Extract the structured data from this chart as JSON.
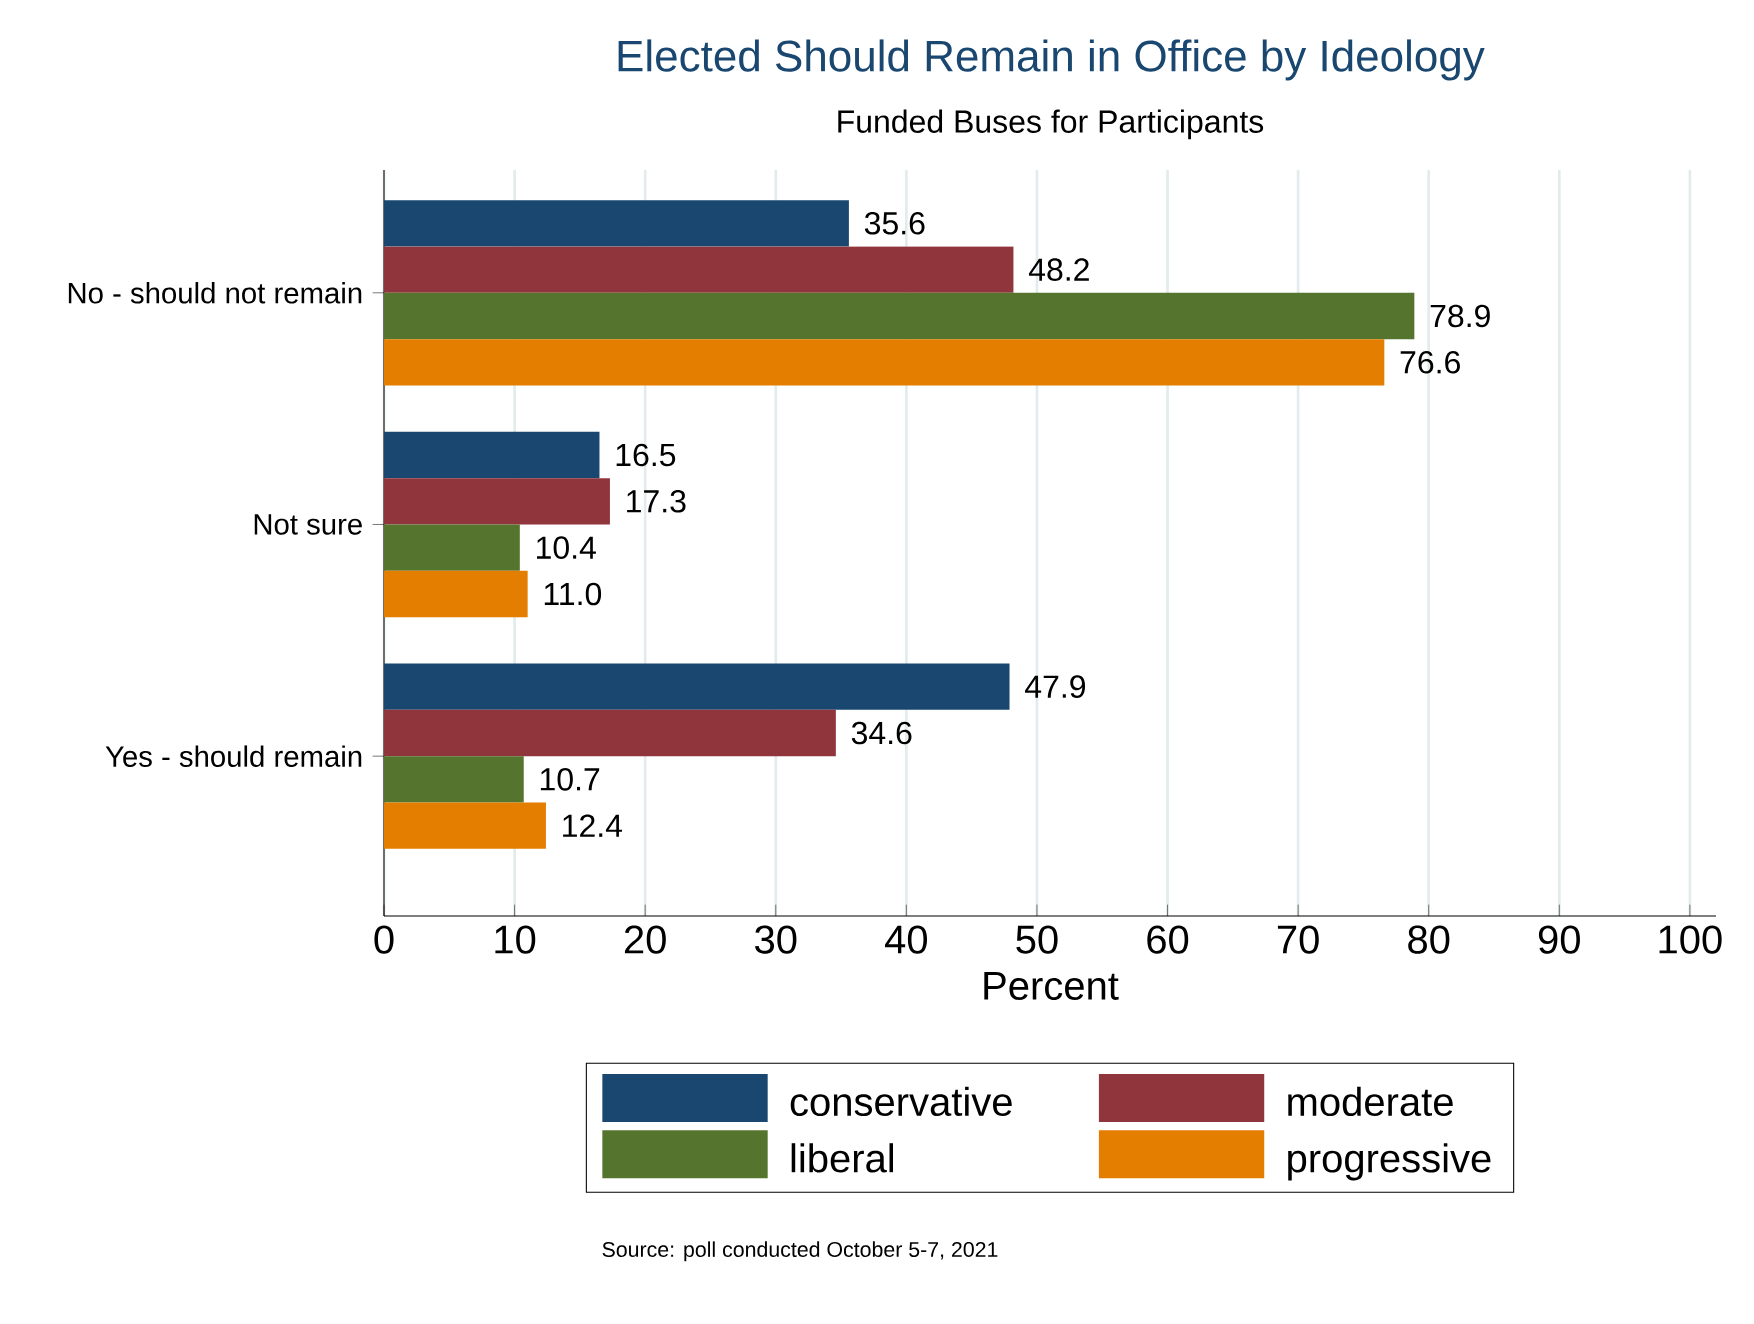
{
  "chart_data": {
    "type": "bar",
    "orientation": "horizontal",
    "title": "Elected Should Remain in Office by Ideology",
    "subtitle": "Funded Buses for Participants",
    "xlabel": "Percent",
    "categories": [
      "No - should not remain",
      "Not sure",
      "Yes - should remain"
    ],
    "series": [
      {
        "name": "conservative",
        "color": "#1a476f",
        "values": [
          35.6,
          16.5,
          47.9
        ],
        "value_labels": [
          "35.6",
          "16.5",
          "47.9"
        ]
      },
      {
        "name": "moderate",
        "color": "#90353b",
        "values": [
          48.2,
          17.3,
          34.6
        ],
        "value_labels": [
          "48.2",
          "17.3",
          "34.6"
        ]
      },
      {
        "name": "liberal",
        "color": "#55752f",
        "values": [
          78.9,
          10.4,
          10.7
        ],
        "value_labels": [
          "78.9",
          "10.4",
          "10.7"
        ]
      },
      {
        "name": "progressive",
        "color": "#e37e00",
        "values": [
          76.6,
          11.0,
          12.4
        ],
        "value_labels": [
          "76.6",
          "11.0",
          "12.4"
        ]
      }
    ],
    "xlim": [
      0,
      102
    ],
    "xticks": [
      0,
      10,
      20,
      30,
      40,
      50,
      60,
      70,
      80,
      90,
      100
    ],
    "grid": "x",
    "legend": "bottom",
    "annotations": [
      "Source: poll conducted October 5-7, 2021"
    ]
  }
}
